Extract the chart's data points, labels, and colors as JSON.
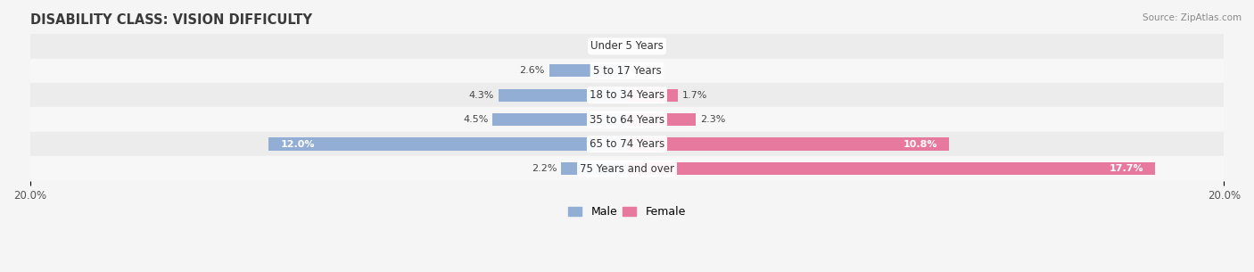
{
  "title": "DISABILITY CLASS: VISION DIFFICULTY",
  "source": "Source: ZipAtlas.com",
  "categories": [
    "Under 5 Years",
    "5 to 17 Years",
    "18 to 34 Years",
    "35 to 64 Years",
    "65 to 74 Years",
    "75 Years and over"
  ],
  "male_values": [
    0.0,
    2.6,
    4.3,
    4.5,
    12.0,
    2.2
  ],
  "female_values": [
    0.0,
    0.0,
    1.7,
    2.3,
    10.8,
    17.7
  ],
  "male_color": "#92aed4",
  "female_color": "#e8799e",
  "max_val": 20.0,
  "row_colors": [
    "#ececec",
    "#f7f7f7",
    "#ececec",
    "#f7f7f7",
    "#ececec",
    "#f7f7f7"
  ],
  "fig_bg": "#f5f5f5",
  "title_color": "#3a3a3a",
  "source_color": "#888888",
  "label_color": "#444444",
  "title_fontsize": 10.5,
  "bar_height": 0.52,
  "legend_male": "Male",
  "legend_female": "Female"
}
